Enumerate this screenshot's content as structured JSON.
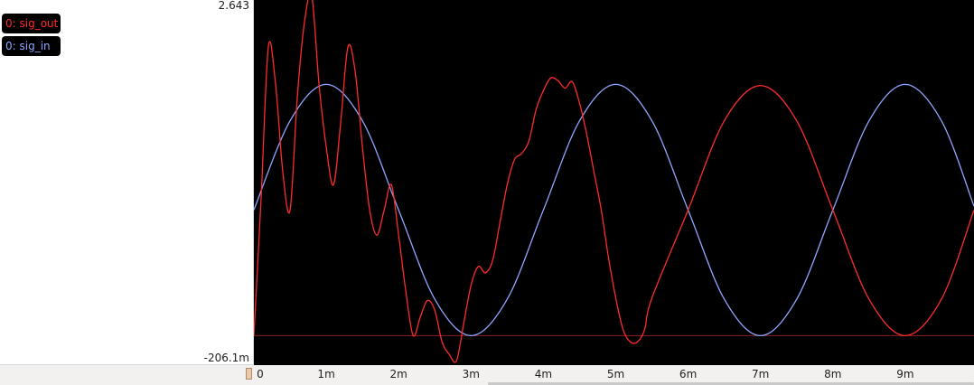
{
  "traces": [
    {
      "label": "0: sig_out",
      "color": "#ff2a2a"
    },
    {
      "label": "0: sig_in",
      "color": "#8fa6ff"
    }
  ],
  "y_axis": {
    "max_label": "2.643",
    "min_label": "-206.1m"
  },
  "x_axis": {
    "ticks": [
      "0",
      "1m",
      "2m",
      "3m",
      "4m",
      "5m",
      "6m",
      "7m",
      "8m",
      "9m"
    ]
  },
  "chart_data": {
    "type": "line",
    "xlim": [
      0,
      0.00995
    ],
    "ylim": [
      -0.2061,
      2.643
    ],
    "series": [
      {
        "name": "0: sig_in",
        "x": [
          0,
          0.0005,
          0.001,
          0.0015,
          0.002,
          0.0025,
          0.003,
          0.0035,
          0.004,
          0.0045,
          0.005,
          0.0055,
          0.006,
          0.0065,
          0.007,
          0.0075,
          0.008,
          0.0085,
          0.009,
          0.0095,
          0.00995
        ],
        "y": [
          1.0,
          1.71,
          2.0,
          1.71,
          1.0,
          0.29,
          0.0,
          0.29,
          1.0,
          1.71,
          2.0,
          1.71,
          1.0,
          0.29,
          0.0,
          0.29,
          1.0,
          1.71,
          2.0,
          1.71,
          1.03
        ]
      },
      {
        "name": "0: sig_out",
        "x": [
          0,
          0.0001,
          0.0002,
          0.0003,
          0.0004,
          0.0005,
          0.0006,
          0.0007,
          0.0008,
          0.0009,
          0.001,
          0.0011,
          0.0012,
          0.0013,
          0.0014,
          0.0015,
          0.0016,
          0.0017,
          0.0018,
          0.0019,
          0.002,
          0.0021,
          0.0022,
          0.0023,
          0.0024,
          0.0025,
          0.0026,
          0.0027,
          0.0028,
          0.0029,
          0.003,
          0.0031,
          0.0032,
          0.0033,
          0.0034,
          0.0035,
          0.0036,
          0.0037,
          0.0038,
          0.0039,
          0.004,
          0.0041,
          0.0042,
          0.0043,
          0.0044,
          0.0045,
          0.0046,
          0.0047,
          0.0048,
          0.0049,
          0.005,
          0.0051,
          0.0052,
          0.0053,
          0.0054,
          0.0055,
          0.006,
          0.0065,
          0.007,
          0.0075,
          0.008,
          0.0085,
          0.009,
          0.0095,
          0.00995
        ],
        "y": [
          0.0,
          1.1,
          2.3,
          2.0,
          1.3,
          1.0,
          1.9,
          2.5,
          2.7,
          2.0,
          1.5,
          1.2,
          1.7,
          2.3,
          2.1,
          1.5,
          1.0,
          0.8,
          1.0,
          1.2,
          0.8,
          0.35,
          0.0,
          0.15,
          0.28,
          0.2,
          -0.05,
          -0.15,
          -0.2,
          0.1,
          0.4,
          0.55,
          0.5,
          0.6,
          0.9,
          1.2,
          1.4,
          1.45,
          1.55,
          1.8,
          1.95,
          2.05,
          2.03,
          1.97,
          2.02,
          1.85,
          1.6,
          1.3,
          1.0,
          0.62,
          0.3,
          0.05,
          -0.05,
          -0.05,
          0.05,
          0.3,
          1.0,
          1.71,
          1.99,
          1.71,
          1.0,
          0.29,
          0.0,
          0.29,
          1.0
        ]
      }
    ],
    "zero_line": 0
  }
}
